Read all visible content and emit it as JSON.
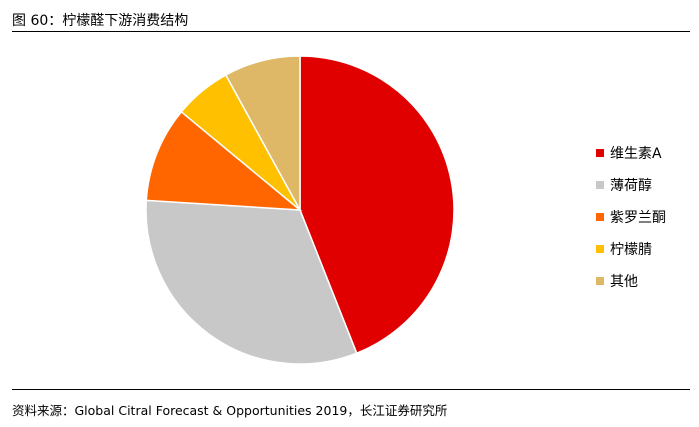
{
  "title": "图 60：柠檬醛下游消费结构",
  "source": "资料来源：Global Citral Forecast & Opportunities 2019，长江证券研究所",
  "chart_data": {
    "type": "pie",
    "title": "",
    "legend_placement": "right",
    "categories": [
      "维生素A",
      "薄荷醇",
      "紫罗兰酮",
      "柠檬腈",
      "其他"
    ],
    "values": [
      44,
      32,
      10,
      6,
      8
    ],
    "unit": "%",
    "colors": [
      "#e00000",
      "#c8c8c8",
      "#ff6600",
      "#ffc000",
      "#deb867"
    ],
    "start": "12 o'clock, clockwise"
  }
}
